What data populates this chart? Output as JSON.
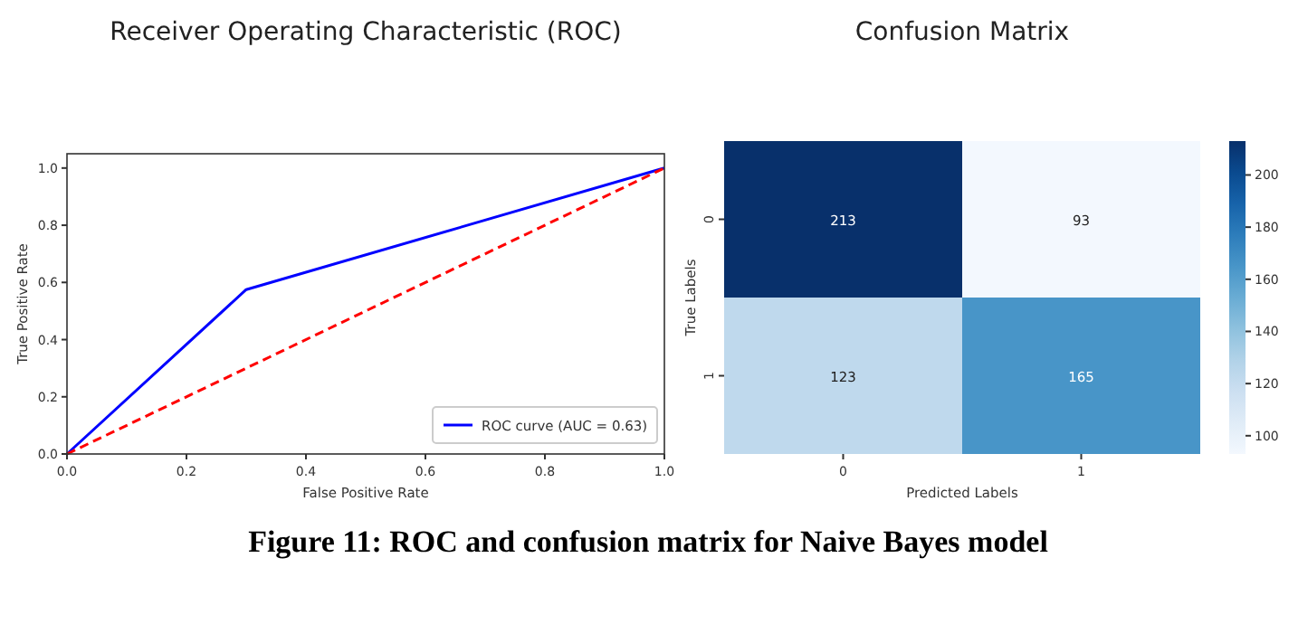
{
  "chart_data": [
    {
      "type": "line",
      "title": "Receiver Operating Characteristic (ROC)",
      "xlabel": "False Positive Rate",
      "ylabel": "True Positive Rate",
      "xlim": [
        0,
        1
      ],
      "ylim": [
        0,
        1.05
      ],
      "xticks": [
        {
          "value": 0,
          "label": "0.0"
        },
        0.2,
        0.4,
        0.6,
        0.8,
        {
          "value": 1,
          "label": "1.0"
        }
      ],
      "yticks": [
        {
          "value": 0,
          "label": "0.0"
        },
        0.2,
        0.4,
        0.6,
        0.8,
        {
          "value": 1,
          "label": "1.0"
        }
      ],
      "legend": "bottom right",
      "grid": false,
      "series": [
        {
          "name": "ROC curve (AUC = 0.63)",
          "color": "#0000ff",
          "x": [
            0,
            0.3,
            1
          ],
          "values": [
            0,
            0.575,
            1
          ],
          "line_style": "solid"
        },
        {
          "color": "#ff0000",
          "x": [
            0,
            1
          ],
          "values": [
            0,
            1
          ],
          "line_style": "dashed"
        }
      ]
    },
    {
      "type": "heatmap",
      "title": "Confusion Matrix",
      "xlabel": "Predicted Labels",
      "ylabel": "True Labels",
      "categories": [
        "0",
        "1"
      ],
      "y_categories": [
        "0",
        "1"
      ],
      "cells": [
        [
          213,
          93
        ],
        [
          123,
          165
        ]
      ],
      "clim": [
        93,
        213
      ],
      "cticks": [
        100,
        120,
        140,
        160,
        180,
        200
      ],
      "data_labels": true,
      "annotations": [
        "Figure 11: ROC and confusion matrix for Naive Bayes model"
      ]
    }
  ]
}
